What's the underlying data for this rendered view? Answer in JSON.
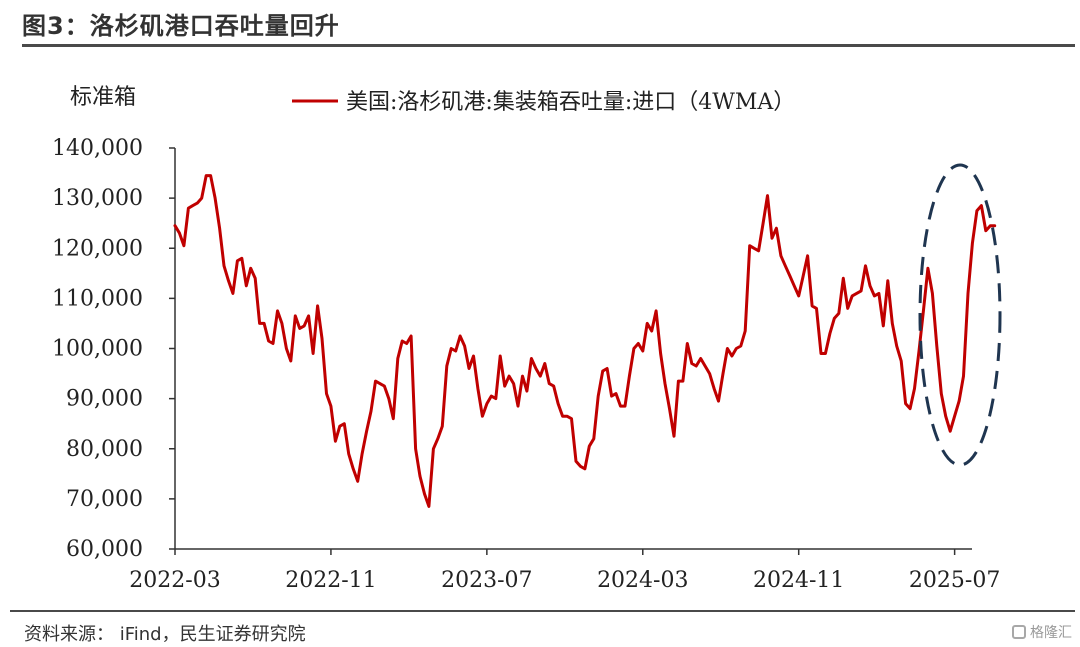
{
  "header": {
    "title": "图3：洛杉矶港口吞吐量回升"
  },
  "footer": {
    "source": "资料来源： iFind，民生证券研究院",
    "watermark": "格隆汇",
    "watermark_icon": "logo-icon"
  },
  "colors": {
    "series": "#c00000",
    "ellipse": "#1f3550",
    "axis": "#333333"
  },
  "chart_data": {
    "type": "line",
    "ylabel": "标准箱",
    "ylim": [
      60000,
      140000
    ],
    "yticks": [
      "140,000",
      "130,000",
      "120,000",
      "110,000",
      "100,000",
      "90,000",
      "80,000",
      "70,000",
      "60,000"
    ],
    "ytick_values": [
      140000,
      130000,
      120000,
      110000,
      100000,
      90000,
      80000,
      70000,
      60000
    ],
    "xticks": [
      "2022-03",
      "2022-11",
      "2023-07",
      "2024-03",
      "2024-11",
      "2025-07"
    ],
    "x_start": "2022-03",
    "x_step_weeks": 1,
    "series": [
      {
        "name": "美国:洛杉矶港:集装箱吞吐量:进口（4WMA）",
        "values": [
          124500,
          123000,
          120500,
          128000,
          128500,
          129000,
          130000,
          134500,
          134500,
          130000,
          124000,
          116500,
          113500,
          111000,
          117500,
          118000,
          112500,
          116000,
          114000,
          105000,
          105000,
          101500,
          101000,
          107500,
          105000,
          100000,
          97500,
          106500,
          104000,
          104500,
          106500,
          99000,
          108500,
          102000,
          91000,
          88500,
          81500,
          84500,
          85000,
          79000,
          76000,
          73500,
          79000,
          83500,
          87500,
          93500,
          93000,
          92500,
          90000,
          86000,
          98000,
          101500,
          101000,
          102500,
          80000,
          74500,
          71000,
          68500,
          80000,
          82000,
          84500,
          96500,
          100000,
          99500,
          102500,
          100500,
          96000,
          98500,
          92000,
          86500,
          89000,
          90500,
          90000,
          98500,
          92500,
          94500,
          93000,
          88500,
          94500,
          91500,
          98000,
          96000,
          94500,
          97000,
          93000,
          92500,
          89000,
          86500,
          86500,
          86000,
          77500,
          76500,
          76000,
          80500,
          82000,
          90500,
          95500,
          96000,
          90500,
          91000,
          88500,
          88500,
          94500,
          100000,
          101000,
          99500,
          105000,
          103500,
          107500,
          99000,
          93000,
          88000,
          82500,
          93500,
          93500,
          101000,
          97000,
          96500,
          98000,
          96500,
          95000,
          92000,
          89500,
          95000,
          100000,
          98500,
          100000,
          100500,
          103500,
          120500,
          120000,
          119500,
          125000,
          130500,
          122000,
          124000,
          118500,
          116500,
          114500,
          112500,
          110500,
          114500,
          118500,
          108500,
          108000,
          99000,
          99000,
          103000,
          106000,
          107000,
          114000,
          108000,
          110500,
          111000,
          111500,
          116500,
          112500,
          110500,
          111000,
          104500,
          113500,
          105000,
          100500,
          97500,
          89000,
          88000,
          92000,
          99500,
          107500,
          116000,
          111000,
          100500,
          91000,
          86500,
          83500,
          86500,
          89500,
          94500,
          111000,
          121000,
          127500,
          128500,
          123500,
          124500,
          124500
        ]
      }
    ]
  }
}
